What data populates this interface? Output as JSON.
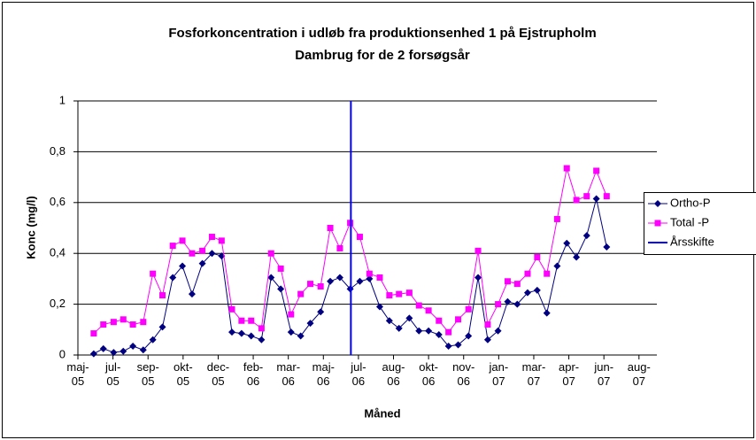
{
  "chart_data": {
    "type": "line",
    "title": [
      "Fosforkoncentration i udløb fra produktionsenhed 1 på Ejstrupholm",
      "Dambrug for de 2 forsøgsår"
    ],
    "x_label": "Måned",
    "y_label": "Konc (mg/l)",
    "xlim": [
      38500,
      39342
    ],
    "xticks": [
      {
        "value": 38500,
        "label": "maj-\n05"
      },
      {
        "value": 38551,
        "label": "jul-\n05"
      },
      {
        "value": 38602,
        "label": "sep-\n05"
      },
      {
        "value": 38653,
        "label": "okt-\n05"
      },
      {
        "value": 38704,
        "label": "dec-\n05"
      },
      {
        "value": 38755,
        "label": "feb-\n06"
      },
      {
        "value": 38806,
        "label": "mar-\n06"
      },
      {
        "value": 38857,
        "label": "maj-\n06"
      },
      {
        "value": 38908,
        "label": "jul-\n06"
      },
      {
        "value": 38959,
        "label": "aug-\n06"
      },
      {
        "value": 39010,
        "label": "okt-\n06"
      },
      {
        "value": 39061,
        "label": "nov-\n06"
      },
      {
        "value": 39112,
        "label": "jan-\n07"
      },
      {
        "value": 39163,
        "label": "mar-\n07"
      },
      {
        "value": 39214,
        "label": "apr-\n07"
      },
      {
        "value": 39265,
        "label": "jun-\n07"
      },
      {
        "value": 39316,
        "label": "aug-\n07"
      }
    ],
    "ylim": [
      0,
      1
    ],
    "yticks": [
      0,
      {
        "value": 0.2,
        "label": "0,2"
      },
      {
        "value": 0.4,
        "label": "0,4"
      },
      {
        "value": 0.6,
        "label": "0,6"
      },
      {
        "value": 0.8,
        "label": "0,8"
      },
      1
    ],
    "grid": true,
    "legend": "right",
    "series": [
      {
        "name": "Ortho-P",
        "color": "#000080",
        "marker": "diamond",
        "x": [
          38523,
          38537,
          38552,
          38566,
          38580,
          38595,
          38609,
          38623,
          38638,
          38652,
          38666,
          38681,
          38695,
          38709,
          38724,
          38738,
          38752,
          38767,
          38781,
          38795,
          38810,
          38824,
          38838,
          38853,
          38867,
          38881,
          38896,
          38910,
          38924,
          38939,
          38953,
          38967,
          38982,
          38996,
          39010,
          39025,
          39039,
          39053,
          39068,
          39082,
          39096,
          39111,
          39125,
          39139,
          39154,
          39168,
          39182,
          39197,
          39211,
          39225,
          39240,
          39254,
          39269
        ],
        "values": [
          0.005,
          0.025,
          0.01,
          0.015,
          0.035,
          0.02,
          0.06,
          0.11,
          0.305,
          0.35,
          0.24,
          0.36,
          0.4,
          0.39,
          0.09,
          0.085,
          0.075,
          0.06,
          0.305,
          0.26,
          0.09,
          0.075,
          0.125,
          0.17,
          0.29,
          0.305,
          0.26,
          0.29,
          0.3,
          0.19,
          0.135,
          0.105,
          0.145,
          0.095,
          0.095,
          0.08,
          0.035,
          0.04,
          0.075,
          0.305,
          0.06,
          0.095,
          0.21,
          0.2,
          0.245,
          0.255,
          0.165,
          0.35,
          0.44,
          0.385,
          0.47,
          0.615,
          0.425
        ]
      },
      {
        "name": "Total -P",
        "color": "#ff00ff",
        "marker": "square",
        "x": [
          38523,
          38537,
          38552,
          38566,
          38580,
          38595,
          38609,
          38623,
          38638,
          38652,
          38666,
          38681,
          38695,
          38709,
          38724,
          38738,
          38752,
          38767,
          38781,
          38795,
          38810,
          38824,
          38838,
          38853,
          38867,
          38881,
          38896,
          38910,
          38924,
          38939,
          38953,
          38967,
          38982,
          38996,
          39010,
          39025,
          39039,
          39053,
          39068,
          39082,
          39096,
          39111,
          39125,
          39139,
          39154,
          39168,
          39182,
          39197,
          39211,
          39225,
          39240,
          39254,
          39269
        ],
        "values": [
          0.085,
          0.12,
          0.13,
          0.14,
          0.12,
          0.13,
          0.32,
          0.235,
          0.43,
          0.45,
          0.4,
          0.41,
          0.465,
          0.45,
          0.18,
          0.135,
          0.135,
          0.105,
          0.4,
          0.34,
          0.16,
          0.24,
          0.28,
          0.27,
          0.5,
          0.42,
          0.52,
          0.465,
          0.32,
          0.305,
          0.235,
          0.24,
          0.245,
          0.195,
          0.175,
          0.135,
          0.09,
          0.14,
          0.18,
          0.41,
          0.12,
          0.2,
          0.29,
          0.28,
          0.32,
          0.385,
          0.32,
          0.535,
          0.735,
          0.61,
          0.625,
          0.725,
          0.625
        ]
      },
      {
        "name": "Årsskifte",
        "color": "#0000ff",
        "marker": "none",
        "x": [
          38897,
          38897
        ],
        "values": [
          0,
          1
        ]
      }
    ]
  }
}
